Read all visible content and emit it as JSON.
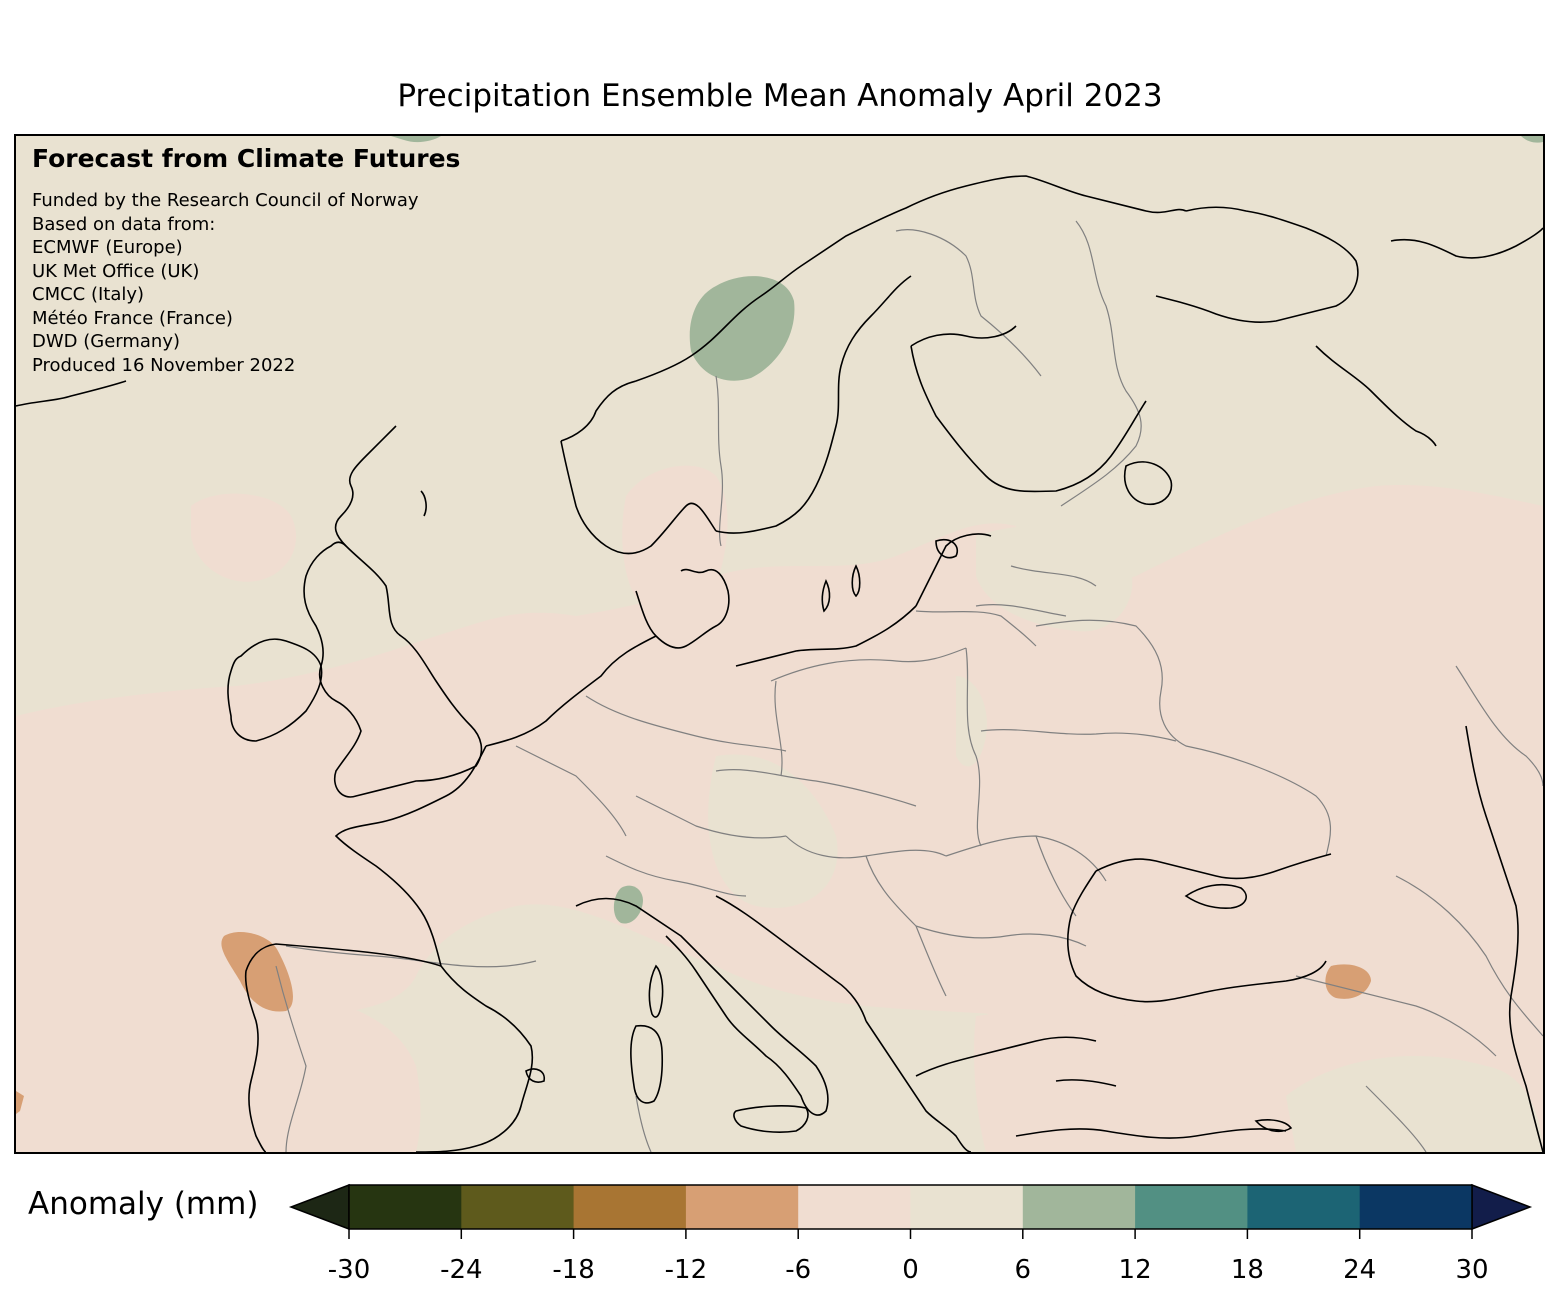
{
  "title": "Precipitation Ensemble Mean Anomaly April 2023",
  "info": {
    "heading": "Forecast from Climate Futures",
    "lines": [
      "Funded by the Research Council of Norway",
      "Based on data from:",
      "ECMWF (Europe)",
      "UK Met Office (UK)",
      "CMCC (Italy)",
      "Météo France (France)",
      "DWD (Germany)",
      "Produced 16 November 2022"
    ]
  },
  "colorbar": {
    "label": "Anomaly (mm)",
    "ticks": [
      "-30",
      "-24",
      "-18",
      "-12",
      "-6",
      "0",
      "6",
      "12",
      "18",
      "24",
      "30"
    ],
    "tick_values": [
      -30,
      -24,
      -18,
      -12,
      -6,
      0,
      6,
      12,
      18,
      24,
      30
    ],
    "colors": [
      "#263511",
      "#5e5a1c",
      "#a87533",
      "#d79f74",
      "#f0ddd1",
      "#e9e2d1",
      "#a1b69b",
      "#529083",
      "#1c6474",
      "#0b3763"
    ],
    "under_color": "#1d2715",
    "over_color": "#121d4a"
  },
  "map": {
    "region": "Europe",
    "background_color": "#e9e2d1",
    "coastline_color": "#000000",
    "border_color": "#808080"
  }
}
